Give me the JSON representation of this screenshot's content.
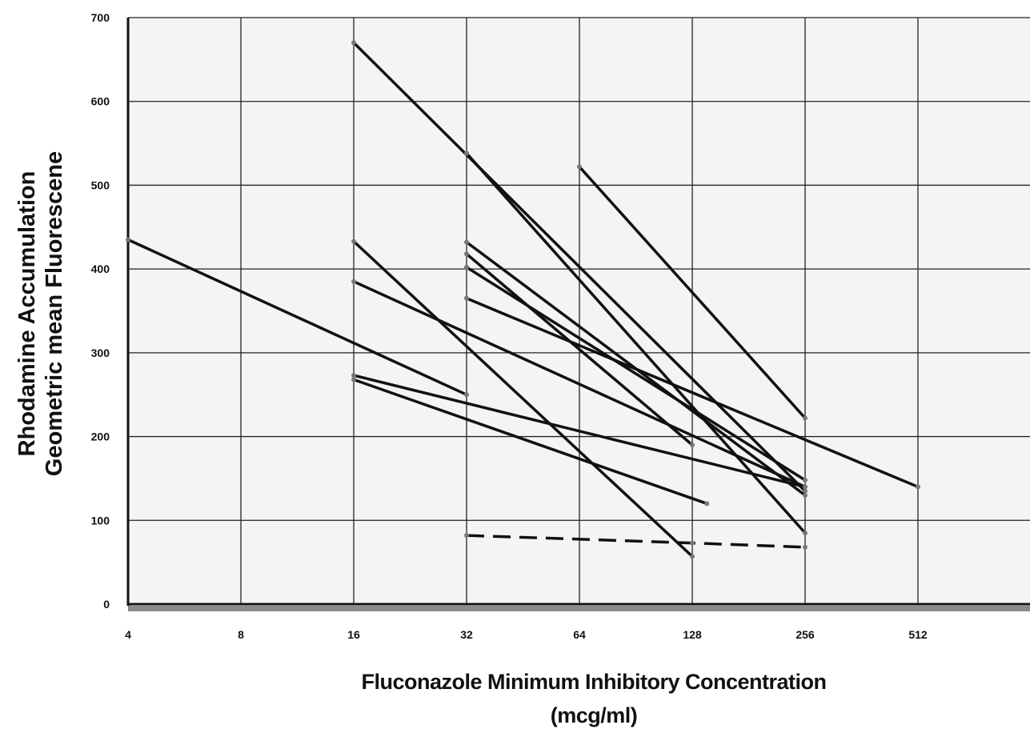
{
  "chart_data": {
    "type": "line",
    "title": "",
    "xlabel": "Fluconazole Minimum Inhibitory Concentration",
    "xlabel_unit": "(mcg/ml)",
    "ylabel": "Rhodamine Accumulation",
    "ylabel_2": "Geometric mean Fluorescene",
    "xscale": "log2",
    "xlim": [
      4,
      1024
    ],
    "ylim": [
      0,
      700
    ],
    "xticks": [
      4,
      8,
      16,
      32,
      64,
      128,
      256,
      512
    ],
    "xtick_labels": [
      "4",
      "8",
      "16",
      "32",
      "64",
      "128",
      "256",
      "512"
    ],
    "yticks": [
      0,
      100,
      200,
      300,
      400,
      500,
      600,
      700
    ],
    "ytick_labels": [
      "0",
      "100",
      "200",
      "300",
      "400",
      "500",
      "600",
      "700"
    ],
    "grid": true,
    "legend": "none",
    "colors": {
      "line": "#111111",
      "plot_bg": "#f4f4f4",
      "grid": "#222222",
      "axis_shadow": "#8a8a8a"
    },
    "series": [
      {
        "x": [
          4,
          32
        ],
        "y": [
          435,
          250
        ],
        "style": "solid"
      },
      {
        "x": [
          16,
          256
        ],
        "y": [
          670,
          135
        ],
        "style": "solid"
      },
      {
        "x": [
          16,
          128
        ],
        "y": [
          433,
          57
        ],
        "style": "solid"
      },
      {
        "x": [
          16,
          256
        ],
        "y": [
          385,
          140
        ],
        "style": "solid"
      },
      {
        "x": [
          16,
          256
        ],
        "y": [
          273,
          140
        ],
        "style": "solid"
      },
      {
        "x": [
          16,
          140
        ],
        "y": [
          268,
          120
        ],
        "style": "solid"
      },
      {
        "x": [
          32,
          256
        ],
        "y": [
          538,
          85
        ],
        "style": "solid"
      },
      {
        "x": [
          32,
          256
        ],
        "y": [
          432,
          130
        ],
        "style": "solid"
      },
      {
        "x": [
          32,
          128
        ],
        "y": [
          418,
          190
        ],
        "style": "solid"
      },
      {
        "x": [
          32,
          256
        ],
        "y": [
          402,
          148
        ],
        "style": "solid"
      },
      {
        "x": [
          32,
          512
        ],
        "y": [
          365,
          140
        ],
        "style": "solid"
      },
      {
        "x": [
          64,
          256
        ],
        "y": [
          522,
          222
        ],
        "style": "solid"
      },
      {
        "x": [
          32,
          128,
          256
        ],
        "y": [
          82,
          73,
          68
        ],
        "style": "dashed"
      }
    ]
  }
}
